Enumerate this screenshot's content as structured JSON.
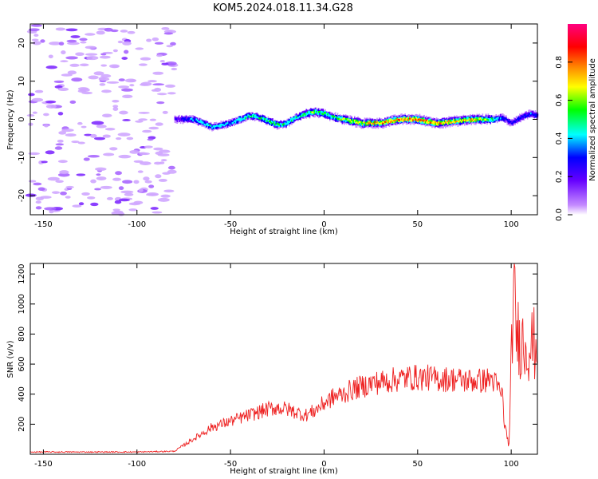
{
  "title": "KOM5.2024.018.11.34.G28",
  "chart_data": [
    {
      "type": "heatmap",
      "xlabel": "Height of straight line (km)",
      "ylabel": "Frequency (Hz)",
      "xlim": [
        -157,
        114
      ],
      "ylim": [
        -25,
        25
      ],
      "xticks": [
        -150,
        -100,
        -50,
        0,
        50,
        100
      ],
      "yticks": [
        -20,
        -10,
        0,
        10,
        20
      ],
      "grid": false,
      "colorbar": {
        "label": "Normalized spectral amplitude",
        "range": [
          0,
          1
        ],
        "ticks": [
          "0.0",
          "0.2",
          "0.4",
          "0.6",
          "0.8"
        ],
        "colormap": "rainbow (white-purple-blue-cyan-green-yellow-orange-red-magenta)"
      },
      "noise_region_x": [
        -157,
        -80
      ],
      "ridge": {
        "description": "narrow high-amplitude band of spectral power near 0 Hz",
        "x": [
          -80,
          -70,
          -60,
          -50,
          -40,
          -35,
          -30,
          -25,
          -20,
          -15,
          -10,
          -5,
          0,
          5,
          10,
          20,
          30,
          40,
          50,
          60,
          70,
          80,
          90,
          95,
          100,
          105,
          110,
          114
        ],
        "freq": [
          0,
          0,
          -2,
          -1,
          1,
          0.5,
          -0.5,
          -1.5,
          -1,
          0.5,
          1.5,
          2,
          1.5,
          0.5,
          0,
          -1,
          -1,
          0,
          0,
          -1,
          -0.5,
          0,
          0,
          0.5,
          -1,
          0.5,
          1.5,
          1
        ],
        "amplitude": [
          0.25,
          0.45,
          0.5,
          0.45,
          0.55,
          0.5,
          0.55,
          0.6,
          0.55,
          0.5,
          0.6,
          0.6,
          0.6,
          0.55,
          0.65,
          0.75,
          0.8,
          0.85,
          0.85,
          0.8,
          0.75,
          0.75,
          0.55,
          0.4,
          0.3,
          0.35,
          0.4,
          0.35
        ]
      }
    },
    {
      "type": "line",
      "xlabel": "Height of straight line (km)",
      "ylabel": "SNR (v/v)",
      "xlim": [
        -157,
        114
      ],
      "ylim": [
        0,
        1270
      ],
      "xticks": [
        -150,
        -100,
        -50,
        0,
        50,
        100
      ],
      "yticks": [
        200,
        400,
        600,
        800,
        1000,
        1200
      ],
      "grid": false,
      "color": "#ee2222",
      "series": [
        {
          "x": [
            -157,
            -140,
            -120,
            -100,
            -80,
            -75,
            -70,
            -65,
            -60,
            -55,
            -50,
            -45,
            -40,
            -35,
            -30,
            -25,
            -20,
            -15,
            -10,
            -5,
            0,
            5,
            10,
            15,
            20,
            25,
            30,
            35,
            40,
            45,
            50,
            55,
            60,
            65,
            70,
            75,
            80,
            85,
            90,
            95,
            97,
            99,
            101,
            103,
            105,
            107,
            110,
            114
          ],
          "y": [
            15,
            15,
            15,
            15,
            20,
            60,
            100,
            140,
            180,
            200,
            220,
            240,
            260,
            280,
            300,
            310,
            300,
            280,
            260,
            290,
            340,
            380,
            400,
            430,
            450,
            470,
            480,
            490,
            500,
            510,
            510,
            510,
            500,
            500,
            500,
            490,
            490,
            490,
            500,
            400,
            150,
            60,
            1100,
            800,
            760,
            740,
            730,
            730
          ]
        }
      ]
    }
  ]
}
